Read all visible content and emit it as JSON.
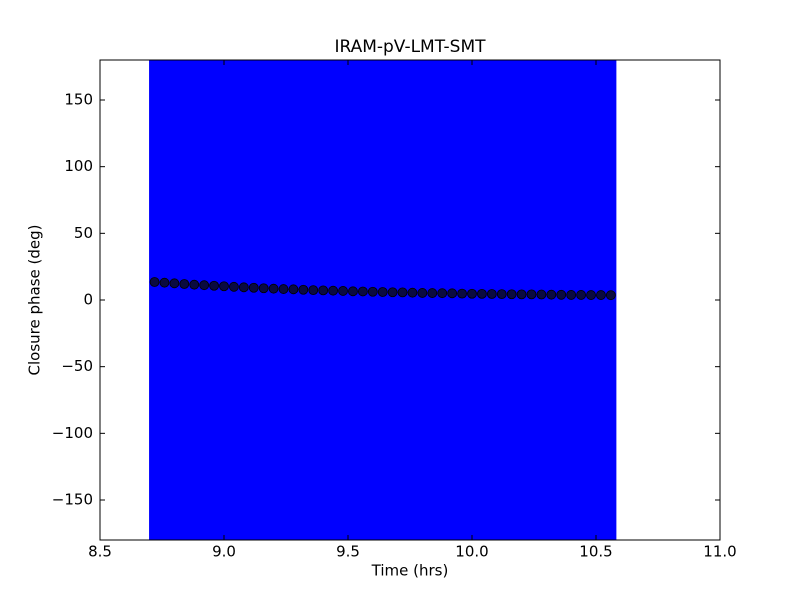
{
  "chart_data": {
    "type": "scatter",
    "title": "IRAM-pV-LMT-SMT",
    "xlabel": "Time (hrs)",
    "ylabel": "Closure phase (deg)",
    "xlim": [
      8.5,
      11.0
    ],
    "ylim": [
      -180,
      180
    ],
    "xticks": [
      8.5,
      {
        "value": 9,
        "label": "9.0"
      },
      9.5,
      {
        "value": 10,
        "label": "10.0"
      },
      10.5,
      {
        "value": 11,
        "label": "11.0"
      }
    ],
    "yticks": [
      {
        "value": -150,
        "label": "−150"
      },
      {
        "value": -100,
        "label": "−100"
      },
      {
        "value": -50,
        "label": "−50"
      },
      0,
      50,
      100,
      150
    ],
    "series": [
      {
        "color": "#0a0a40",
        "error_color": "#0000ff",
        "yerr": 200,
        "x": [
          8.72,
          8.76,
          8.8,
          8.84,
          8.88,
          8.92,
          8.96,
          9.0,
          9.04,
          9.08,
          9.12,
          9.16,
          9.2,
          9.24,
          9.28,
          9.32,
          9.36,
          9.4,
          9.44,
          9.48,
          9.52,
          9.56,
          9.6,
          9.64,
          9.68,
          9.72,
          9.76,
          9.8,
          9.84,
          9.88,
          9.92,
          9.96,
          10.0,
          10.04,
          10.08,
          10.12,
          10.16,
          10.2,
          10.24,
          10.28,
          10.32,
          10.36,
          10.4,
          10.44,
          10.48,
          10.52,
          10.56
        ],
        "values": [
          13.5,
          13.0,
          12.5,
          12.0,
          11.5,
          11.1,
          10.7,
          10.3,
          9.9,
          9.5,
          9.2,
          8.8,
          8.5,
          8.2,
          8.0,
          7.7,
          7.4,
          7.2,
          7.0,
          6.8,
          6.5,
          6.4,
          6.2,
          6.0,
          5.8,
          5.7,
          5.5,
          5.3,
          5.2,
          5.1,
          5.0,
          4.8,
          4.7,
          4.6,
          4.5,
          4.4,
          4.3,
          4.2,
          4.2,
          4.1,
          4.0,
          3.9,
          3.8,
          3.8,
          3.7,
          3.7,
          3.6
        ]
      }
    ]
  }
}
